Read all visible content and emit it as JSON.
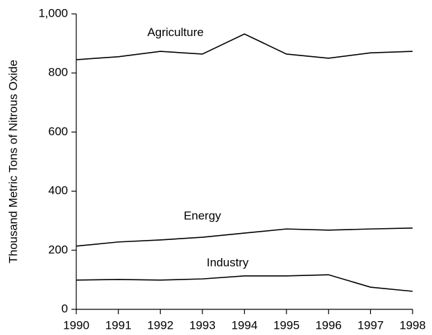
{
  "chart_data": {
    "type": "line",
    "ylabel": "Thousand Metric Tons of Nitrous Oxide",
    "x": [
      1990,
      1991,
      1992,
      1993,
      1994,
      1995,
      1996,
      1997,
      1998
    ],
    "xlim": [
      1990,
      1998
    ],
    "xticks": [
      1990,
      1991,
      1992,
      1993,
      1994,
      1995,
      1996,
      1997,
      1998
    ],
    "ylim": [
      0,
      1000
    ],
    "yticks": [
      0,
      200,
      400,
      600,
      800,
      {
        "value": 1000,
        "label": "1,000"
      }
    ],
    "grid": false,
    "series": [
      {
        "name": "Agriculture",
        "color": "#000000",
        "values": [
          845,
          855,
          873,
          864,
          932,
          864,
          850,
          868,
          873
        ]
      },
      {
        "name": "Energy",
        "color": "#000000",
        "values": [
          214,
          228,
          235,
          244,
          258,
          272,
          268,
          272,
          275
        ]
      },
      {
        "name": "Industry",
        "color": "#000000",
        "values": [
          99,
          101,
          99,
          103,
          113,
          113,
          117,
          75,
          61
        ]
      }
    ]
  }
}
